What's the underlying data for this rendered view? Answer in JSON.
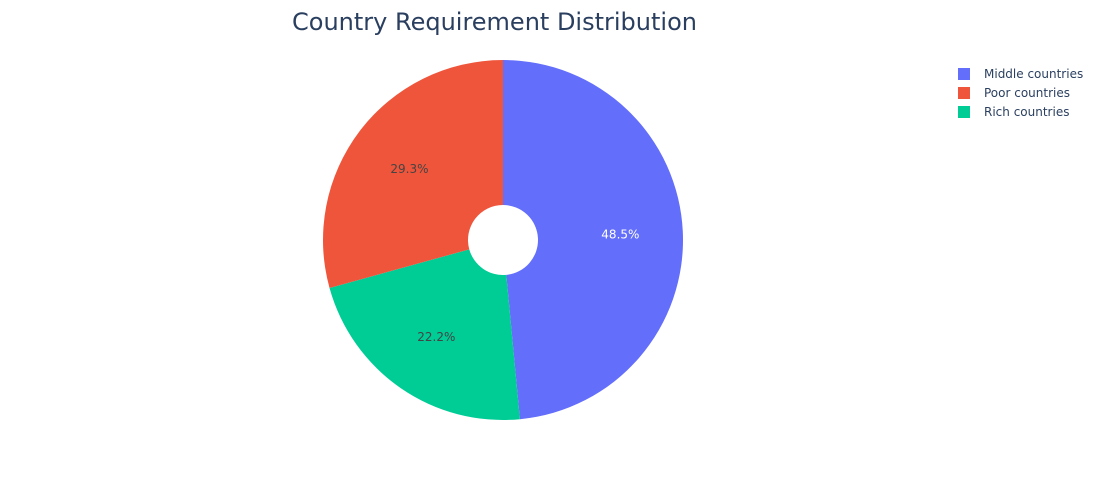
{
  "chart_data": {
    "type": "pie",
    "title": "Country Requirement Distribution",
    "hole": true,
    "direction": "clockwise",
    "legend_position": "top-right",
    "slices": [
      {
        "name": "Middle countries",
        "value": 48.5,
        "label": "48.5%",
        "color": "#636efa",
        "label_color": "#ffffff"
      },
      {
        "name": "Rich countries",
        "value": 22.2,
        "label": "22.2%",
        "color": "#00cc96",
        "label_color": "#444444"
      },
      {
        "name": "Poor countries",
        "value": 29.3,
        "label": "29.3%",
        "color": "#ef553b",
        "label_color": "#444444"
      }
    ],
    "legend": [
      "Middle countries",
      "Poor countries",
      "Rich countries"
    ]
  }
}
